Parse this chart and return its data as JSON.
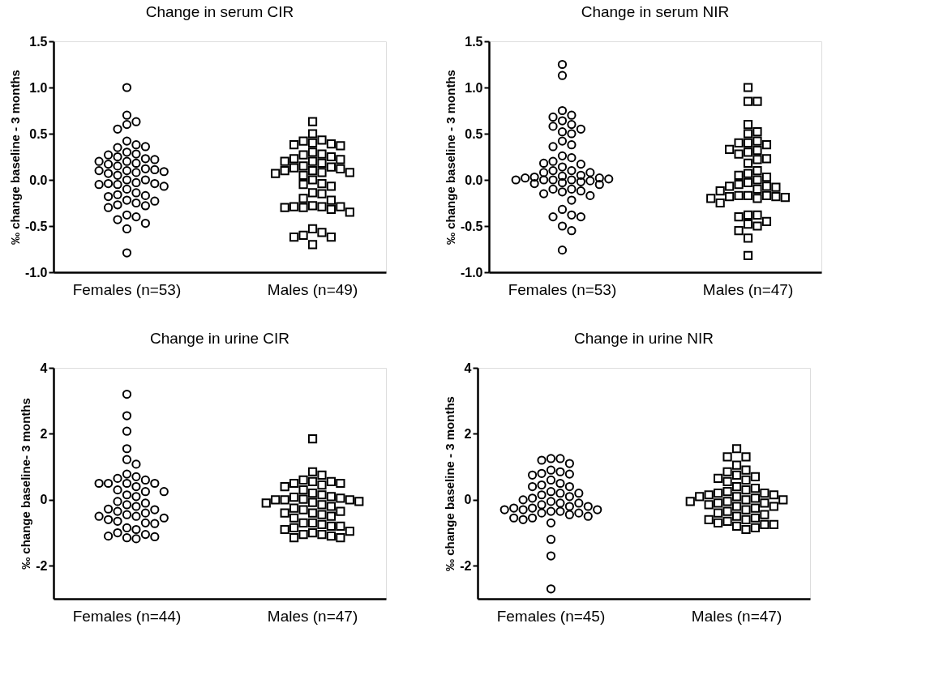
{
  "chart_data": [
    {
      "type": "scatter",
      "title": "Change in serum CIR",
      "ylabel": "‰ change baseline - 3 months",
      "categories": [
        "Females (n=53)",
        "Males (n=49)"
      ],
      "ylim": [
        -1,
        1.5
      ],
      "yticks": [
        {
          "value": -1,
          "label": "-1.0"
        },
        -0.5,
        {
          "value": 0,
          "label": "0.0"
        },
        0.5,
        {
          "value": 1,
          "label": "1.0"
        },
        1.5
      ],
      "grid": false,
      "series": [
        {
          "marker": "circle",
          "color": "#000000",
          "x": [
            "Females (n=53)",
            "Females (n=53)",
            "Females (n=53)",
            "Females (n=53)",
            "Females (n=53)",
            "Females (n=53)",
            "Females (n=53)",
            "Females (n=53)",
            "Females (n=53)",
            "Females (n=53)",
            "Females (n=53)",
            "Females (n=53)",
            "Females (n=53)",
            "Females (n=53)",
            "Females (n=53)",
            "Females (n=53)",
            "Females (n=53)",
            "Females (n=53)",
            "Females (n=53)",
            "Females (n=53)",
            "Females (n=53)",
            "Females (n=53)",
            "Females (n=53)",
            "Females (n=53)",
            "Females (n=53)",
            "Females (n=53)",
            "Females (n=53)",
            "Females (n=53)",
            "Females (n=53)",
            "Females (n=53)",
            "Females (n=53)",
            "Females (n=53)",
            "Females (n=53)",
            "Females (n=53)",
            "Females (n=53)",
            "Females (n=53)",
            "Females (n=53)",
            "Females (n=53)",
            "Females (n=53)",
            "Females (n=53)",
            "Females (n=53)",
            "Females (n=53)",
            "Females (n=53)",
            "Females (n=53)",
            "Females (n=53)",
            "Females (n=53)",
            "Females (n=53)",
            "Females (n=53)",
            "Females (n=53)",
            "Females (n=53)",
            "Females (n=53)",
            "Females (n=53)",
            "Females (n=53)"
          ],
          "values": [
            1.0,
            0.7,
            0.63,
            0.6,
            0.55,
            0.42,
            0.38,
            0.35,
            0.36,
            0.3,
            0.28,
            0.27,
            0.25,
            0.23,
            0.22,
            0.2,
            0.2,
            0.18,
            0.17,
            0.15,
            0.12,
            0.11,
            0.1,
            0.1,
            0.09,
            0.08,
            0.07,
            0.05,
            0.0,
            0.0,
            -0.03,
            -0.04,
            -0.04,
            -0.05,
            -0.05,
            -0.07,
            -0.1,
            -0.14,
            -0.16,
            -0.17,
            -0.18,
            -0.22,
            -0.23,
            -0.25,
            -0.27,
            -0.28,
            -0.3,
            -0.38,
            -0.4,
            -0.43,
            -0.47,
            -0.53,
            -0.79
          ]
        },
        {
          "marker": "square",
          "color": "#000000",
          "x": [
            "Males (n=49)",
            "Males (n=49)",
            "Males (n=49)",
            "Males (n=49)",
            "Males (n=49)",
            "Males (n=49)",
            "Males (n=49)",
            "Males (n=49)",
            "Males (n=49)",
            "Males (n=49)",
            "Males (n=49)",
            "Males (n=49)",
            "Males (n=49)",
            "Males (n=49)",
            "Males (n=49)",
            "Males (n=49)",
            "Males (n=49)",
            "Males (n=49)",
            "Males (n=49)",
            "Males (n=49)",
            "Males (n=49)",
            "Males (n=49)",
            "Males (n=49)",
            "Males (n=49)",
            "Males (n=49)",
            "Males (n=49)",
            "Males (n=49)",
            "Males (n=49)",
            "Males (n=49)",
            "Males (n=49)",
            "Males (n=49)",
            "Males (n=49)",
            "Males (n=49)",
            "Males (n=49)",
            "Males (n=49)",
            "Males (n=49)",
            "Males (n=49)",
            "Males (n=49)",
            "Males (n=49)",
            "Males (n=49)",
            "Males (n=49)",
            "Males (n=49)",
            "Males (n=49)",
            "Males (n=49)",
            "Males (n=49)",
            "Males (n=49)",
            "Males (n=49)",
            "Males (n=49)",
            "Males (n=49)"
          ],
          "values": [
            0.63,
            0.5,
            0.43,
            0.42,
            0.4,
            0.39,
            0.38,
            0.37,
            0.3,
            0.28,
            0.27,
            0.25,
            0.23,
            0.22,
            0.2,
            0.2,
            0.18,
            0.15,
            0.14,
            0.13,
            0.12,
            0.1,
            0.1,
            0.08,
            0.08,
            0.07,
            0.05,
            0.0,
            -0.04,
            -0.05,
            -0.07,
            -0.14,
            -0.15,
            -0.2,
            -0.22,
            -0.28,
            -0.29,
            -0.29,
            -0.29,
            -0.3,
            -0.3,
            -0.32,
            -0.35,
            -0.53,
            -0.57,
            -0.6,
            -0.62,
            -0.62,
            -0.7
          ]
        }
      ]
    },
    {
      "type": "scatter",
      "title": "Change in serum NIR",
      "ylabel": "‰ change baseline - 3 months",
      "categories": [
        "Females (n=53)",
        "Males (n=47)"
      ],
      "ylim": [
        -1,
        1.5
      ],
      "yticks": [
        {
          "value": -1,
          "label": "-1.0"
        },
        -0.5,
        {
          "value": 0,
          "label": "0.0"
        },
        0.5,
        {
          "value": 1,
          "label": "1.0"
        },
        1.5
      ],
      "grid": false,
      "series": [
        {
          "marker": "circle",
          "color": "#000000",
          "x": [
            "Females (n=53)",
            "Females (n=53)",
            "Females (n=53)",
            "Females (n=53)",
            "Females (n=53)",
            "Females (n=53)",
            "Females (n=53)",
            "Females (n=53)",
            "Females (n=53)",
            "Females (n=53)",
            "Females (n=53)",
            "Females (n=53)",
            "Females (n=53)",
            "Females (n=53)",
            "Females (n=53)",
            "Females (n=53)",
            "Females (n=53)",
            "Females (n=53)",
            "Females (n=53)",
            "Females (n=53)",
            "Females (n=53)",
            "Females (n=53)",
            "Females (n=53)",
            "Females (n=53)",
            "Females (n=53)",
            "Females (n=53)",
            "Females (n=53)",
            "Females (n=53)",
            "Females (n=53)",
            "Females (n=53)",
            "Females (n=53)",
            "Females (n=53)",
            "Females (n=53)",
            "Females (n=53)",
            "Females (n=53)",
            "Females (n=53)",
            "Females (n=53)",
            "Females (n=53)",
            "Females (n=53)",
            "Females (n=53)",
            "Females (n=53)",
            "Females (n=53)",
            "Females (n=53)",
            "Females (n=53)",
            "Females (n=53)",
            "Females (n=53)",
            "Females (n=53)",
            "Females (n=53)",
            "Females (n=53)",
            "Females (n=53)",
            "Females (n=53)",
            "Females (n=53)",
            "Females (n=53)"
          ],
          "values": [
            1.25,
            1.13,
            0.75,
            0.7,
            0.68,
            0.64,
            0.6,
            0.58,
            0.55,
            0.52,
            0.5,
            0.42,
            0.38,
            0.36,
            0.26,
            0.24,
            0.2,
            0.17,
            0.18,
            0.14,
            0.1,
            0.1,
            0.08,
            0.08,
            0.05,
            0.04,
            0.03,
            0.02,
            0.02,
            0.01,
            0.0,
            0.0,
            0.0,
            0.0,
            -0.01,
            -0.02,
            -0.03,
            -0.04,
            -0.05,
            -0.1,
            -0.1,
            -0.12,
            -0.13,
            -0.15,
            -0.17,
            -0.22,
            -0.32,
            -0.38,
            -0.4,
            -0.4,
            -0.5,
            -0.55,
            -0.76
          ]
        },
        {
          "marker": "square",
          "color": "#000000",
          "x": [
            "Males (n=47)",
            "Males (n=47)",
            "Males (n=47)",
            "Males (n=47)",
            "Males (n=47)",
            "Males (n=47)",
            "Males (n=47)",
            "Males (n=47)",
            "Males (n=47)",
            "Males (n=47)",
            "Males (n=47)",
            "Males (n=47)",
            "Males (n=47)",
            "Males (n=47)",
            "Males (n=47)",
            "Males (n=47)",
            "Males (n=47)",
            "Males (n=47)",
            "Males (n=47)",
            "Males (n=47)",
            "Males (n=47)",
            "Males (n=47)",
            "Males (n=47)",
            "Males (n=47)",
            "Males (n=47)",
            "Males (n=47)",
            "Males (n=47)",
            "Males (n=47)",
            "Males (n=47)",
            "Males (n=47)",
            "Males (n=47)",
            "Males (n=47)",
            "Males (n=47)",
            "Males (n=47)",
            "Males (n=47)",
            "Males (n=47)",
            "Males (n=47)",
            "Males (n=47)",
            "Males (n=47)",
            "Males (n=47)",
            "Males (n=47)",
            "Males (n=47)",
            "Males (n=47)",
            "Males (n=47)",
            "Males (n=47)",
            "Males (n=47)",
            "Males (n=47)"
          ],
          "values": [
            1.0,
            0.85,
            0.85,
            0.6,
            0.52,
            0.5,
            0.42,
            0.4,
            0.4,
            0.38,
            0.33,
            0.32,
            0.3,
            0.28,
            0.23,
            0.22,
            0.18,
            0.1,
            0.07,
            0.05,
            0.03,
            0.0,
            -0.03,
            -0.05,
            -0.07,
            -0.07,
            -0.08,
            -0.1,
            -0.12,
            -0.17,
            -0.17,
            -0.17,
            -0.18,
            -0.18,
            -0.19,
            -0.2,
            -0.2,
            -0.25,
            -0.38,
            -0.38,
            -0.4,
            -0.45,
            -0.48,
            -0.5,
            -0.55,
            -0.63,
            -0.82
          ]
        }
      ]
    },
    {
      "type": "scatter",
      "title": "Change in urine CIR",
      "ylabel": "‰ change baseline- 3 months",
      "categories": [
        "Females (n=44)",
        "Males (n=47)"
      ],
      "ylim": [
        -3,
        4
      ],
      "yticks": [
        -2,
        0,
        2,
        4
      ],
      "grid": false,
      "series": [
        {
          "marker": "circle",
          "color": "#000000",
          "x": [
            "Females (n=44)",
            "Females (n=44)",
            "Females (n=44)",
            "Females (n=44)",
            "Females (n=44)",
            "Females (n=44)",
            "Females (n=44)",
            "Females (n=44)",
            "Females (n=44)",
            "Females (n=44)",
            "Females (n=44)",
            "Females (n=44)",
            "Females (n=44)",
            "Females (n=44)",
            "Females (n=44)",
            "Females (n=44)",
            "Females (n=44)",
            "Females (n=44)",
            "Females (n=44)",
            "Females (n=44)",
            "Females (n=44)",
            "Females (n=44)",
            "Females (n=44)",
            "Females (n=44)",
            "Females (n=44)",
            "Females (n=44)",
            "Females (n=44)",
            "Females (n=44)",
            "Females (n=44)",
            "Females (n=44)",
            "Females (n=44)",
            "Females (n=44)",
            "Females (n=44)",
            "Females (n=44)",
            "Females (n=44)",
            "Females (n=44)",
            "Females (n=44)",
            "Females (n=44)",
            "Females (n=44)",
            "Females (n=44)",
            "Females (n=44)",
            "Females (n=44)",
            "Females (n=44)",
            "Females (n=44)"
          ],
          "values": [
            3.2,
            2.55,
            2.08,
            1.55,
            1.22,
            1.08,
            0.78,
            0.7,
            0.65,
            0.6,
            0.5,
            0.5,
            0.5,
            0.5,
            0.4,
            0.3,
            0.25,
            0.25,
            0.15,
            0.1,
            -0.05,
            -0.1,
            -0.15,
            -0.2,
            -0.28,
            -0.3,
            -0.35,
            -0.4,
            -0.45,
            -0.5,
            -0.5,
            -0.55,
            -0.6,
            -0.65,
            -0.7,
            -0.72,
            -0.85,
            -0.9,
            -1.0,
            -1.05,
            -1.1,
            -1.12,
            -1.15,
            -1.18
          ]
        },
        {
          "marker": "square",
          "color": "#000000",
          "x": [
            "Males (n=47)",
            "Males (n=47)",
            "Males (n=47)",
            "Males (n=47)",
            "Males (n=47)",
            "Males (n=47)",
            "Males (n=47)",
            "Males (n=47)",
            "Males (n=47)",
            "Males (n=47)",
            "Males (n=47)",
            "Males (n=47)",
            "Males (n=47)",
            "Males (n=47)",
            "Males (n=47)",
            "Males (n=47)",
            "Males (n=47)",
            "Males (n=47)",
            "Males (n=47)",
            "Males (n=47)",
            "Males (n=47)",
            "Males (n=47)",
            "Males (n=47)",
            "Males (n=47)",
            "Males (n=47)",
            "Males (n=47)",
            "Males (n=47)",
            "Males (n=47)",
            "Males (n=47)",
            "Males (n=47)",
            "Males (n=47)",
            "Males (n=47)",
            "Males (n=47)",
            "Males (n=47)",
            "Males (n=47)",
            "Males (n=47)",
            "Males (n=47)",
            "Males (n=47)",
            "Males (n=47)",
            "Males (n=47)",
            "Males (n=47)",
            "Males (n=47)",
            "Males (n=47)",
            "Males (n=47)",
            "Males (n=47)",
            "Males (n=47)",
            "Males (n=47)"
          ],
          "values": [
            1.85,
            0.85,
            0.75,
            0.6,
            0.55,
            0.55,
            0.5,
            0.5,
            0.45,
            0.4,
            0.3,
            0.2,
            0.15,
            0.1,
            0.08,
            0.05,
            0.02,
            0.0,
            0.0,
            0.0,
            -0.05,
            -0.08,
            -0.1,
            -0.15,
            -0.2,
            -0.25,
            -0.3,
            -0.35,
            -0.4,
            -0.4,
            -0.45,
            -0.5,
            -0.55,
            -0.7,
            -0.7,
            -0.75,
            -0.8,
            -0.8,
            -0.85,
            -0.9,
            -0.95,
            -1.0,
            -1.05,
            -1.05,
            -1.1,
            -1.15,
            -1.15
          ]
        }
      ]
    },
    {
      "type": "scatter",
      "title": "Change in urine NIR",
      "ylabel": "‰ change baseline - 3 months",
      "categories": [
        "Females (n=45)",
        "Males (n=47)"
      ],
      "ylim": [
        -3,
        4
      ],
      "yticks": [
        -2,
        0,
        2,
        4
      ],
      "grid": false,
      "series": [
        {
          "marker": "circle",
          "color": "#000000",
          "x": [
            "Females (n=45)",
            "Females (n=45)",
            "Females (n=45)",
            "Females (n=45)",
            "Females (n=45)",
            "Females (n=45)",
            "Females (n=45)",
            "Females (n=45)",
            "Females (n=45)",
            "Females (n=45)",
            "Females (n=45)",
            "Females (n=45)",
            "Females (n=45)",
            "Females (n=45)",
            "Females (n=45)",
            "Females (n=45)",
            "Females (n=45)",
            "Females (n=45)",
            "Females (n=45)",
            "Females (n=45)",
            "Females (n=45)",
            "Females (n=45)",
            "Females (n=45)",
            "Females (n=45)",
            "Females (n=45)",
            "Females (n=45)",
            "Females (n=45)",
            "Females (n=45)",
            "Females (n=45)",
            "Females (n=45)",
            "Females (n=45)",
            "Females (n=45)",
            "Females (n=45)",
            "Females (n=45)",
            "Females (n=45)",
            "Females (n=45)",
            "Females (n=45)",
            "Females (n=45)",
            "Females (n=45)",
            "Females (n=45)",
            "Females (n=45)",
            "Females (n=45)",
            "Females (n=45)",
            "Females (n=45)",
            "Females (n=45)"
          ],
          "values": [
            1.25,
            1.25,
            1.2,
            1.1,
            0.9,
            0.85,
            0.8,
            0.78,
            0.75,
            0.6,
            0.5,
            0.45,
            0.4,
            0.4,
            0.25,
            0.2,
            0.2,
            0.15,
            0.1,
            0.05,
            0.0,
            -0.05,
            -0.1,
            -0.1,
            -0.15,
            -0.2,
            -0.2,
            -0.25,
            -0.25,
            -0.3,
            -0.3,
            -0.3,
            -0.35,
            -0.35,
            -0.4,
            -0.4,
            -0.45,
            -0.5,
            -0.55,
            -0.55,
            -0.6,
            -0.7,
            -1.2,
            -1.7,
            -2.7
          ]
        },
        {
          "marker": "square",
          "color": "#000000",
          "x": [
            "Males (n=47)",
            "Males (n=47)",
            "Males (n=47)",
            "Males (n=47)",
            "Males (n=47)",
            "Males (n=47)",
            "Males (n=47)",
            "Males (n=47)",
            "Males (n=47)",
            "Males (n=47)",
            "Males (n=47)",
            "Males (n=47)",
            "Males (n=47)",
            "Males (n=47)",
            "Males (n=47)",
            "Males (n=47)",
            "Males (n=47)",
            "Males (n=47)",
            "Males (n=47)",
            "Males (n=47)",
            "Males (n=47)",
            "Males (n=47)",
            "Males (n=47)",
            "Males (n=47)",
            "Males (n=47)",
            "Males (n=47)",
            "Males (n=47)",
            "Males (n=47)",
            "Males (n=47)",
            "Males (n=47)",
            "Males (n=47)",
            "Males (n=47)",
            "Males (n=47)",
            "Males (n=47)",
            "Males (n=47)",
            "Males (n=47)",
            "Males (n=47)",
            "Males (n=47)",
            "Males (n=47)",
            "Males (n=47)",
            "Males (n=47)",
            "Males (n=47)",
            "Males (n=47)",
            "Males (n=47)",
            "Males (n=47)",
            "Males (n=47)",
            "Males (n=47)"
          ],
          "values": [
            1.55,
            1.3,
            1.3,
            1.05,
            0.9,
            0.85,
            0.75,
            0.7,
            0.65,
            0.6,
            0.55,
            0.4,
            0.35,
            0.3,
            0.25,
            0.2,
            0.2,
            0.15,
            0.15,
            0.1,
            0.1,
            0.05,
            0.0,
            0.0,
            -0.05,
            -0.05,
            -0.1,
            -0.1,
            -0.15,
            -0.2,
            -0.2,
            -0.25,
            -0.3,
            -0.35,
            -0.4,
            -0.45,
            -0.5,
            -0.55,
            -0.6,
            -0.6,
            -0.65,
            -0.7,
            -0.75,
            -0.75,
            -0.8,
            -0.85,
            -0.9
          ]
        }
      ]
    }
  ]
}
